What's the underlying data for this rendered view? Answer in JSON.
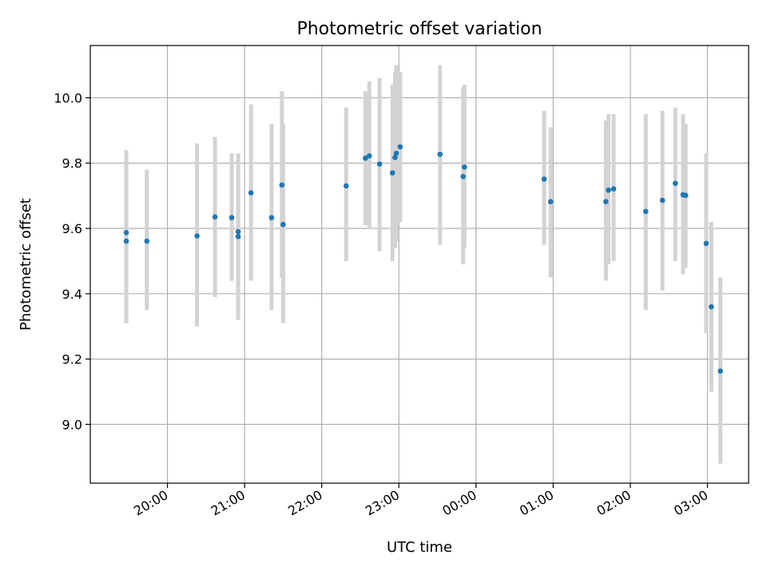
{
  "chart_data": {
    "type": "scatter",
    "title": "Photometric offset variation",
    "xlabel": "UTC time",
    "ylabel": "Photometric offset",
    "x_axis": "time",
    "x_start": "19:00",
    "x_end": "03:32",
    "ylim": [
      8.82,
      10.16
    ],
    "grid": true,
    "colors": {
      "point": "#1f77b4",
      "error_bar": "#d3d3d3",
      "grid": "#b0b0b0",
      "axes": "#000000"
    },
    "x_ticks": [
      "20:00",
      "21:00",
      "22:00",
      "23:00",
      "00:00",
      "01:00",
      "02:00",
      "03:00"
    ],
    "y_ticks": [
      9.0,
      9.2,
      9.4,
      9.6,
      9.8,
      10.0
    ],
    "y_tick_labels": [
      "9.0",
      "9.2",
      "9.4",
      "9.6",
      "9.8",
      "10.0"
    ],
    "points": [
      {
        "x": "19:28",
        "y": 9.587,
        "low": 9.31,
        "high": 9.84
      },
      {
        "x": "19:28",
        "y": 9.561,
        "low": 9.31,
        "high": 9.81
      },
      {
        "x": "19:44",
        "y": 9.561,
        "low": 9.35,
        "high": 9.78
      },
      {
        "x": "20:23",
        "y": 9.577,
        "low": 9.3,
        "high": 9.86
      },
      {
        "x": "20:37",
        "y": 9.635,
        "low": 9.39,
        "high": 9.88
      },
      {
        "x": "20:50",
        "y": 9.633,
        "low": 9.44,
        "high": 9.83
      },
      {
        "x": "20:55",
        "y": 9.59,
        "low": 9.32,
        "high": 9.83
      },
      {
        "x": "20:55",
        "y": 9.575,
        "low": 9.35,
        "high": 9.81
      },
      {
        "x": "21:05",
        "y": 9.709,
        "low": 9.44,
        "high": 9.98
      },
      {
        "x": "21:21",
        "y": 9.633,
        "low": 9.35,
        "high": 9.92
      },
      {
        "x": "21:29",
        "y": 9.733,
        "low": 9.45,
        "high": 10.02
      },
      {
        "x": "21:30",
        "y": 9.612,
        "low": 9.31,
        "high": 9.92
      },
      {
        "x": "22:19",
        "y": 9.73,
        "low": 9.5,
        "high": 9.97
      },
      {
        "x": "22:34",
        "y": 9.815,
        "low": 9.61,
        "high": 10.02
      },
      {
        "x": "22:37",
        "y": 9.822,
        "low": 9.6,
        "high": 10.05
      },
      {
        "x": "22:45",
        "y": 9.797,
        "low": 9.53,
        "high": 10.06
      },
      {
        "x": "22:55",
        "y": 9.77,
        "low": 9.5,
        "high": 10.04
      },
      {
        "x": "22:57",
        "y": 9.817,
        "low": 9.54,
        "high": 10.08
      },
      {
        "x": "22:58",
        "y": 9.83,
        "low": 9.56,
        "high": 10.1
      },
      {
        "x": "23:01",
        "y": 9.85,
        "low": 9.62,
        "high": 10.08
      },
      {
        "x": "23:32",
        "y": 9.827,
        "low": 9.55,
        "high": 10.1
      },
      {
        "x": "23:50",
        "y": 9.759,
        "low": 9.49,
        "high": 10.03
      },
      {
        "x": "23:51",
        "y": 9.788,
        "low": 9.54,
        "high": 10.04
      },
      {
        "x": "00:53",
        "y": 9.751,
        "low": 9.55,
        "high": 9.96
      },
      {
        "x": "00:58",
        "y": 9.682,
        "low": 9.45,
        "high": 9.91
      },
      {
        "x": "01:41",
        "y": 9.682,
        "low": 9.44,
        "high": 9.93
      },
      {
        "x": "01:43",
        "y": 9.717,
        "low": 9.49,
        "high": 9.95
      },
      {
        "x": "01:47",
        "y": 9.721,
        "low": 9.5,
        "high": 9.95
      },
      {
        "x": "02:12",
        "y": 9.652,
        "low": 9.35,
        "high": 9.95
      },
      {
        "x": "02:25",
        "y": 9.686,
        "low": 9.41,
        "high": 9.96
      },
      {
        "x": "02:35",
        "y": 9.738,
        "low": 9.5,
        "high": 9.97
      },
      {
        "x": "02:41",
        "y": 9.703,
        "low": 9.46,
        "high": 9.95
      },
      {
        "x": "02:43",
        "y": 9.701,
        "low": 9.48,
        "high": 9.92
      },
      {
        "x": "02:59",
        "y": 9.554,
        "low": 9.28,
        "high": 9.83
      },
      {
        "x": "03:03",
        "y": 9.36,
        "low": 9.1,
        "high": 9.62
      },
      {
        "x": "03:10",
        "y": 9.163,
        "low": 8.88,
        "high": 9.45
      }
    ]
  }
}
